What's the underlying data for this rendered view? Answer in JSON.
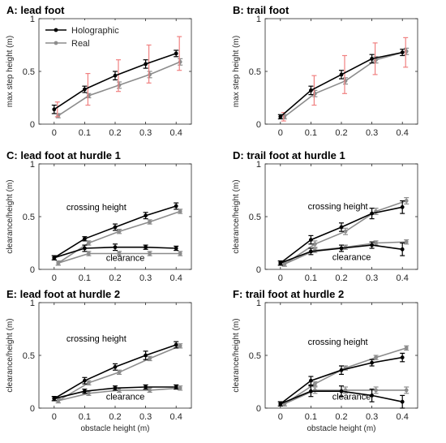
{
  "figure": {
    "shared_xlabel": "obstacle height (m)",
    "legend": {
      "holographic": "Holographic",
      "real": "Real"
    }
  },
  "colors": {
    "holographic": "#000000",
    "real": "#8c8c8c",
    "real_error_highlight": "#f08080",
    "axis": "#262626"
  },
  "chart_data": [
    {
      "id": "A",
      "type": "line",
      "title": "A: lead foot",
      "xlabel": "",
      "ylabel": "max step height (m)",
      "xlim": [
        -0.05,
        0.45
      ],
      "ylim": [
        0,
        1
      ],
      "xticks": [
        0,
        0.1,
        0.2,
        0.3,
        0.4
      ],
      "yticks": [
        0,
        0.5,
        1
      ],
      "xtick_labels": [
        "0",
        "0.1",
        "0.2",
        "0.3",
        "0.4"
      ],
      "ytick_labels": [
        "0",
        "0.5",
        "1"
      ],
      "legend_position": "top-left",
      "x": [
        0,
        0.1,
        0.2,
        0.3,
        0.4
      ],
      "series": [
        {
          "name": "Holographic",
          "values": [
            0.14,
            0.33,
            0.46,
            0.57,
            0.67
          ],
          "errors": [
            0.04,
            0.03,
            0.04,
            0.04,
            0.03
          ],
          "highlight_errors": [
            0.07,
            0.15,
            0.15,
            0.18,
            0.16
          ]
        },
        {
          "name": "Real",
          "values": [
            0.08,
            0.27,
            0.37,
            0.47,
            0.59
          ],
          "errors": [
            0.02,
            0.02,
            0.03,
            0.03,
            0.03
          ]
        }
      ],
      "annotations": []
    },
    {
      "id": "B",
      "type": "line",
      "title": "B: trail foot",
      "xlabel": "",
      "ylabel": "max step height (m)",
      "xlim": [
        -0.05,
        0.45
      ],
      "ylim": [
        0,
        1
      ],
      "xticks": [
        0,
        0.1,
        0.2,
        0.3,
        0.4
      ],
      "yticks": [
        0,
        0.5,
        1
      ],
      "xtick_labels": [
        "0",
        "0.1",
        "0.2",
        "0.3",
        "0.4"
      ],
      "ytick_labels": [
        "0",
        "0.5",
        "1"
      ],
      "x": [
        0,
        0.1,
        0.2,
        0.3,
        0.4
      ],
      "series": [
        {
          "name": "Holographic",
          "values": [
            0.07,
            0.32,
            0.47,
            0.62,
            0.68
          ],
          "errors": [
            0.02,
            0.04,
            0.04,
            0.04,
            0.03
          ],
          "highlight_errors": [
            0.04,
            0.14,
            0.18,
            0.15,
            0.14
          ]
        },
        {
          "name": "Real",
          "values": [
            0.07,
            0.29,
            0.41,
            0.61,
            0.69
          ],
          "errors": [
            0.02,
            0.03,
            0.03,
            0.03,
            0.03
          ]
        }
      ],
      "annotations": []
    },
    {
      "id": "C",
      "type": "line",
      "title": "C: lead foot at hurdle 1",
      "xlabel": "",
      "ylabel": "clearance/height (m)",
      "xlim": [
        -0.05,
        0.45
      ],
      "ylim": [
        0,
        1
      ],
      "xticks": [
        0,
        0.1,
        0.2,
        0.3,
        0.4
      ],
      "yticks": [
        0,
        0.5,
        1
      ],
      "xtick_labels": [
        "0",
        "0.1",
        "0.2",
        "0.3",
        "0.4"
      ],
      "ytick_labels": [
        "0",
        "0.5",
        "1"
      ],
      "x": [
        0,
        0.1,
        0.2,
        0.3,
        0.4
      ],
      "series": [
        {
          "name": "Holographic",
          "values": [
            0.11,
            0.29,
            0.4,
            0.51,
            0.6
          ],
          "errors": [
            0.02,
            0.02,
            0.03,
            0.03,
            0.03
          ]
        },
        {
          "name": "Real",
          "values": [
            0.06,
            0.25,
            0.36,
            0.45,
            0.55
          ],
          "errors": [
            0.02,
            0.02,
            0.02,
            0.02,
            0.02
          ]
        },
        {
          "name": "Holographic",
          "values": [
            0.11,
            0.2,
            0.21,
            0.21,
            0.2
          ],
          "errors": [
            0.02,
            0.03,
            0.03,
            0.02,
            0.02
          ]
        },
        {
          "name": "Real",
          "values": [
            0.06,
            0.15,
            0.15,
            0.15,
            0.15
          ],
          "errors": [
            0.02,
            0.02,
            0.02,
            0.02,
            0.02
          ]
        }
      ],
      "annotations": [
        {
          "text": "crossing height",
          "x": 0.04,
          "y": 0.56
        },
        {
          "text": "clearance",
          "x": 0.17,
          "y": 0.08
        }
      ]
    },
    {
      "id": "D",
      "type": "line",
      "title": "D: trail foot at hurdle 1",
      "xlabel": "",
      "ylabel": "clearance/height (m)",
      "xlim": [
        -0.05,
        0.45
      ],
      "ylim": [
        0,
        1
      ],
      "xticks": [
        0,
        0.1,
        0.2,
        0.3,
        0.4
      ],
      "yticks": [
        0,
        0.5,
        1
      ],
      "xtick_labels": [
        "0",
        "0.1",
        "0.2",
        "0.3",
        "0.4"
      ],
      "ytick_labels": [
        "0",
        "0.5",
        "1"
      ],
      "x": [
        0,
        0.1,
        0.2,
        0.3,
        0.4
      ],
      "series": [
        {
          "name": "Holographic",
          "values": [
            0.06,
            0.28,
            0.4,
            0.53,
            0.59
          ],
          "errors": [
            0.02,
            0.04,
            0.04,
            0.05,
            0.06
          ]
        },
        {
          "name": "Real",
          "values": [
            0.05,
            0.24,
            0.36,
            0.55,
            0.65
          ],
          "errors": [
            0.02,
            0.03,
            0.03,
            0.03,
            0.03
          ]
        },
        {
          "name": "Holographic",
          "values": [
            0.06,
            0.17,
            0.2,
            0.23,
            0.19
          ],
          "errors": [
            0.02,
            0.03,
            0.03,
            0.03,
            0.06
          ]
        },
        {
          "name": "Real",
          "values": [
            0.05,
            0.18,
            0.21,
            0.25,
            0.26
          ],
          "errors": [
            0.02,
            0.02,
            0.02,
            0.02,
            0.02
          ]
        }
      ],
      "annotations": [
        {
          "text": "crossing height",
          "x": 0.09,
          "y": 0.57
        },
        {
          "text": "clearance",
          "x": 0.17,
          "y": 0.09
        }
      ]
    },
    {
      "id": "E",
      "type": "line",
      "title": "E: lead foot at hurdle 2",
      "xlabel": "obstacle height (m)",
      "ylabel": "clearance/height (m)",
      "xlim": [
        -0.05,
        0.45
      ],
      "ylim": [
        0,
        1
      ],
      "xticks": [
        0,
        0.1,
        0.2,
        0.3,
        0.4
      ],
      "yticks": [
        0,
        0.5,
        1
      ],
      "xtick_labels": [
        "0",
        "0.1",
        "0.2",
        "0.3",
        "0.4"
      ],
      "ytick_labels": [
        "0",
        "0.5",
        "1"
      ],
      "x": [
        0,
        0.1,
        0.2,
        0.3,
        0.4
      ],
      "series": [
        {
          "name": "Holographic",
          "values": [
            0.09,
            0.26,
            0.39,
            0.5,
            0.6
          ],
          "errors": [
            0.02,
            0.03,
            0.03,
            0.04,
            0.03
          ]
        },
        {
          "name": "Real",
          "values": [
            0.07,
            0.24,
            0.34,
            0.47,
            0.59
          ],
          "errors": [
            0.02,
            0.02,
            0.02,
            0.02,
            0.02
          ]
        },
        {
          "name": "Holographic",
          "values": [
            0.09,
            0.16,
            0.19,
            0.2,
            0.2
          ],
          "errors": [
            0.02,
            0.02,
            0.02,
            0.02,
            0.02
          ]
        },
        {
          "name": "Real",
          "values": [
            0.07,
            0.14,
            0.17,
            0.17,
            0.19
          ],
          "errors": [
            0.02,
            0.02,
            0.02,
            0.02,
            0.02
          ]
        }
      ],
      "annotations": [
        {
          "text": "crossing height",
          "x": 0.04,
          "y": 0.63
        },
        {
          "text": "clearance",
          "x": 0.17,
          "y": 0.08
        }
      ]
    },
    {
      "id": "F",
      "type": "line",
      "title": "F: trail foot at hurdle 2",
      "xlabel": "obstacle height (m)",
      "ylabel": "clearance/height (m)",
      "xlim": [
        -0.05,
        0.45
      ],
      "ylim": [
        0,
        1
      ],
      "xticks": [
        0,
        0.1,
        0.2,
        0.3,
        0.4
      ],
      "yticks": [
        0,
        0.5,
        1
      ],
      "xtick_labels": [
        "0",
        "0.1",
        "0.2",
        "0.3",
        "0.4"
      ],
      "ytick_labels": [
        "0",
        "0.5",
        "1"
      ],
      "x": [
        0,
        0.1,
        0.2,
        0.3,
        0.4
      ],
      "series": [
        {
          "name": "Holographic",
          "values": [
            0.04,
            0.26,
            0.36,
            0.43,
            0.48
          ],
          "errors": [
            0.02,
            0.04,
            0.04,
            0.03,
            0.04
          ]
        },
        {
          "name": "Real",
          "values": [
            0.04,
            0.23,
            0.38,
            0.48,
            0.57
          ],
          "errors": [
            0.02,
            0.02,
            0.02,
            0.02,
            0.02
          ]
        },
        {
          "name": "Holographic",
          "values": [
            0.04,
            0.16,
            0.16,
            0.12,
            0.06
          ],
          "errors": [
            0.02,
            0.05,
            0.05,
            0.06,
            0.06
          ]
        },
        {
          "name": "Real",
          "values": [
            0.04,
            0.17,
            0.17,
            0.17,
            0.17
          ],
          "errors": [
            0.02,
            0.03,
            0.03,
            0.03,
            0.03
          ]
        }
      ],
      "annotations": [
        {
          "text": "crossing height",
          "x": 0.09,
          "y": 0.6
        },
        {
          "text": "clearance",
          "x": 0.17,
          "y": 0.08
        }
      ]
    }
  ]
}
